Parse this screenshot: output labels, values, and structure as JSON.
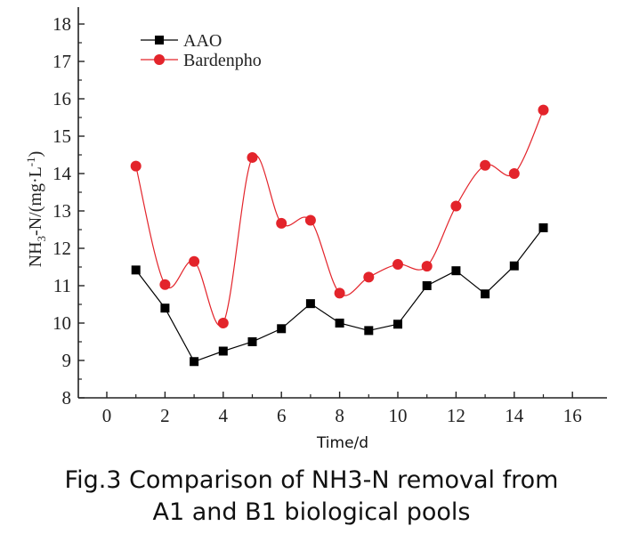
{
  "chart_data": {
    "type": "line",
    "xlabel": "Time/d",
    "ylabel": "NH3-N/(mg·L-1)",
    "ylabel_parts": {
      "main": "NH",
      "sub": "3",
      "mid": "-N/(mg·L",
      "sup": "-1",
      "end": ")"
    },
    "xlim": [
      -1,
      17
    ],
    "ylim": [
      8,
      18.5
    ],
    "xticks": [
      0,
      2,
      4,
      6,
      8,
      10,
      12,
      14,
      16
    ],
    "yticks": [
      8,
      9,
      10,
      11,
      12,
      13,
      14,
      15,
      16,
      17,
      18
    ],
    "legend_position": "top-left",
    "series": [
      {
        "name": "AAO",
        "color": "#000000",
        "marker": "square",
        "smooth": false,
        "x": [
          1,
          2,
          3,
          4,
          5,
          6,
          7,
          8,
          9,
          10,
          11,
          12,
          13,
          14,
          15
        ],
        "values": [
          11.42,
          10.4,
          8.97,
          9.25,
          9.5,
          9.85,
          10.52,
          10.0,
          9.8,
          9.97,
          11.0,
          11.4,
          10.78,
          11.53,
          12.55
        ]
      },
      {
        "name": "Bardenpho",
        "color": "#e3242b",
        "marker": "circle",
        "smooth": true,
        "x": [
          1,
          2,
          3,
          4,
          5,
          6,
          7,
          8,
          9,
          10,
          11,
          12,
          13,
          14,
          15
        ],
        "values": [
          14.2,
          11.03,
          11.65,
          10.0,
          14.43,
          12.67,
          12.75,
          10.8,
          11.23,
          11.57,
          11.52,
          13.13,
          14.22,
          14.0,
          15.7
        ]
      }
    ]
  },
  "caption": {
    "line1": "Fig.3 Comparison of NH3-N removal from",
    "line2": "A1 and B1 biological pools"
  }
}
